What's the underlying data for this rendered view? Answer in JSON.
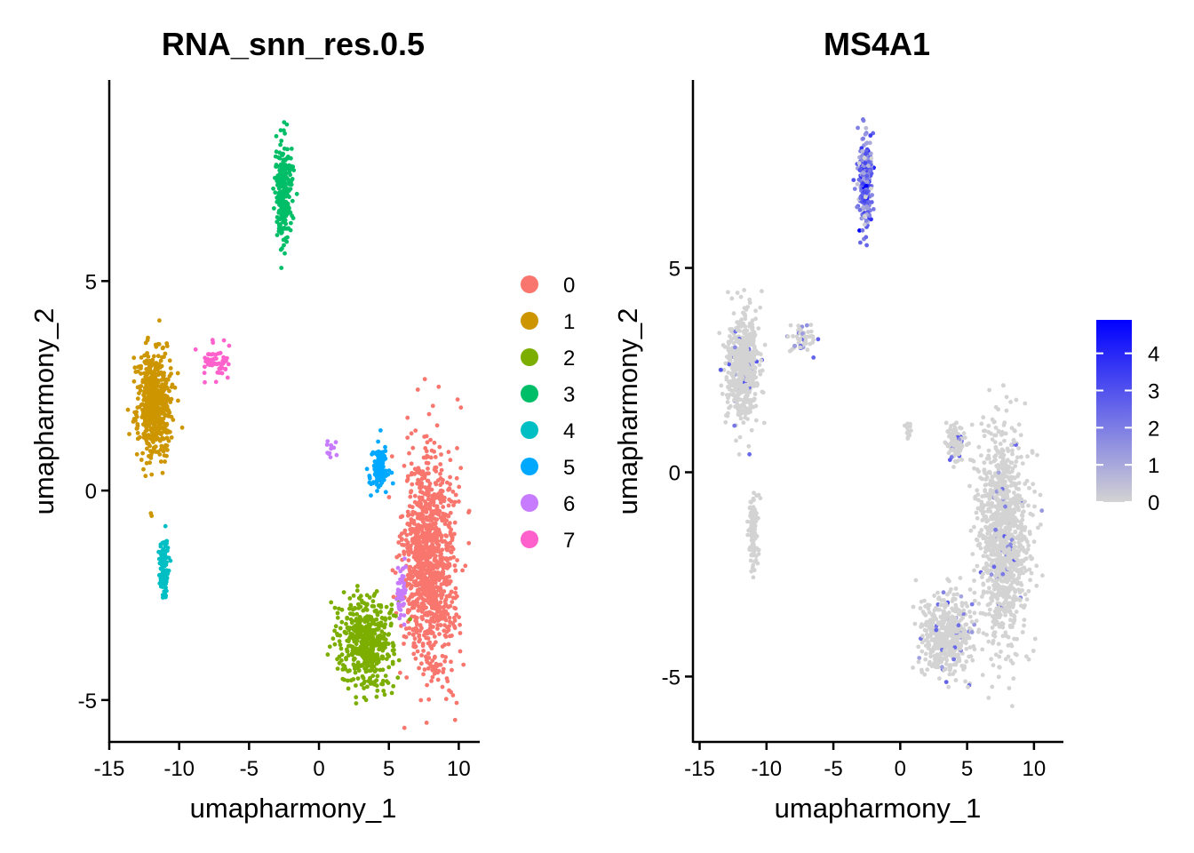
{
  "chart_data": [
    {
      "type": "scatter",
      "title": "RNA_snn_res.0.5",
      "xlabel": "umapharmony_1",
      "ylabel": "umapharmony_2",
      "xlim": [
        -15,
        11.5
      ],
      "ylim": [
        -6,
        9.8
      ],
      "xticks": [
        "-15",
        "-10",
        "-5",
        "0",
        "5",
        "10"
      ],
      "yticks": [
        "-5",
        "0",
        "5"
      ],
      "grid": false,
      "legend": "right",
      "color_by": "cluster",
      "legend_entries": [
        {
          "label": "0",
          "color": "#F8766D"
        },
        {
          "label": "1",
          "color": "#CD9600"
        },
        {
          "label": "2",
          "color": "#7CAE00"
        },
        {
          "label": "3",
          "color": "#00BE67"
        },
        {
          "label": "4",
          "color": "#00BFC4"
        },
        {
          "label": "5",
          "color": "#00A9FF"
        },
        {
          "label": "6",
          "color": "#C77CFF"
        },
        {
          "label": "7",
          "color": "#FF61CC"
        }
      ],
      "clusters": [
        {
          "name": "0",
          "color": "#F8766D",
          "center": [
            7.9,
            -1.7
          ],
          "spread": [
            1.65,
            2.4
          ],
          "n": 1100
        },
        {
          "name": "1",
          "color": "#CD9600",
          "center": [
            -11.8,
            2.1
          ],
          "spread": [
            1.1,
            1.2
          ],
          "n": 600
        },
        {
          "name": "2",
          "color": "#7CAE00",
          "center": [
            3.4,
            -3.6
          ],
          "spread": [
            1.7,
            0.95
          ],
          "n": 480
        },
        {
          "name": "3",
          "color": "#00BE67",
          "center": [
            -2.5,
            7.1
          ],
          "spread": [
            0.55,
            1.05
          ],
          "n": 260
        },
        {
          "name": "4",
          "color": "#00BFC4",
          "center": [
            -11.1,
            -1.8
          ],
          "spread": [
            0.3,
            0.65
          ],
          "n": 120
        },
        {
          "name": "5",
          "color": "#00A9FF",
          "center": [
            4.3,
            0.5
          ],
          "spread": [
            0.65,
            0.45
          ],
          "n": 110
        },
        {
          "name": "6",
          "color": "#C77CFF",
          "center": [
            5.9,
            -2.4
          ],
          "spread": [
            0.3,
            0.55
          ],
          "n": 50
        },
        {
          "name": "6",
          "color": "#C77CFF",
          "center": [
            0.8,
            1.0
          ],
          "spread": [
            0.25,
            0.15
          ],
          "n": 12
        },
        {
          "name": "7",
          "color": "#FF61CC",
          "center": [
            -7.3,
            3.1
          ],
          "spread": [
            0.9,
            0.35
          ],
          "n": 55
        }
      ]
    },
    {
      "type": "scatter",
      "title": "MS4A1",
      "xlabel": "umapharmony_1",
      "ylabel": "umapharmony_2",
      "xlim": [
        -15.5,
        12.2
      ],
      "ylim": [
        -6.6,
        9.6
      ],
      "xticks": [
        "-15",
        "-10",
        "-5",
        "0",
        "5",
        "10"
      ],
      "yticks": [
        "-5",
        "0",
        "5"
      ],
      "grid": false,
      "legend": "right",
      "color_by": "expression",
      "colorscale": {
        "low": "#D3D3D3",
        "high": "#0000FF",
        "min": 0,
        "max": 4.9
      },
      "colorbar_ticks": [
        "4",
        "3",
        "2",
        "1",
        "0"
      ],
      "clusters": [
        {
          "center": [
            7.7,
            -1.6
          ],
          "spread": [
            1.7,
            2.4
          ],
          "n": 1100,
          "expr_mean": 0.05
        },
        {
          "center": [
            -11.8,
            2.6
          ],
          "spread": [
            1.1,
            1.1
          ],
          "n": 600,
          "expr_mean": 0.05
        },
        {
          "center": [
            3.5,
            -4.0
          ],
          "spread": [
            1.7,
            0.9
          ],
          "n": 480,
          "expr_mean": 0.05
        },
        {
          "center": [
            -2.6,
            7.1
          ],
          "spread": [
            0.5,
            1.0
          ],
          "n": 260,
          "expr_mean": 2.2
        },
        {
          "center": [
            -11.0,
            -1.4
          ],
          "spread": [
            0.3,
            0.8
          ],
          "n": 120,
          "expr_mean": 0.0
        },
        {
          "center": [
            4.1,
            0.7
          ],
          "spread": [
            0.6,
            0.4
          ],
          "n": 110,
          "expr_mean": 0.1
        },
        {
          "center": [
            0.6,
            1.0
          ],
          "spread": [
            0.2,
            0.2
          ],
          "n": 12,
          "expr_mean": 0.0
        },
        {
          "center": [
            -7.3,
            3.3
          ],
          "spread": [
            0.9,
            0.35
          ],
          "n": 55,
          "expr_mean": 0.2
        }
      ]
    }
  ]
}
